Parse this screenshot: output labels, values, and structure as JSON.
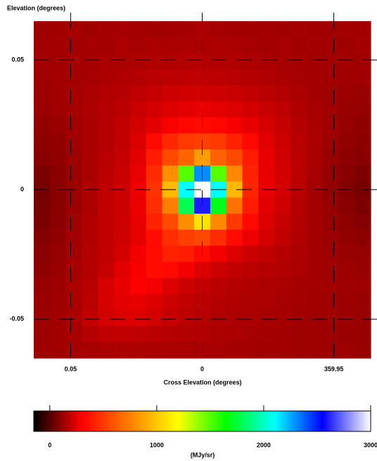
{
  "chart_data": {
    "type": "heatmap",
    "x_label": "Cross Elevation (degrees)",
    "y_label": "Elevation (degrees)",
    "xlim": [
      0.064,
      -0.064
    ],
    "ylim": [
      -0.065,
      0.065
    ],
    "xticks": [
      0.05,
      0,
      {
        "value": -0.05,
        "label": "359.95"
      }
    ],
    "yticks": [
      0.05,
      0,
      -0.05
    ],
    "grid": true,
    "z": [
      [
        130,
        135,
        140,
        130,
        140,
        145,
        140,
        135,
        140,
        145,
        150,
        145,
        140,
        135,
        140,
        130,
        140,
        135,
        130,
        140,
        135
      ],
      [
        135,
        140,
        135,
        145,
        140,
        150,
        145,
        150,
        150,
        155,
        150,
        155,
        150,
        145,
        140,
        145,
        135,
        140,
        135,
        130,
        140
      ],
      [
        140,
        135,
        145,
        140,
        150,
        150,
        155,
        160,
        160,
        165,
        165,
        160,
        160,
        155,
        150,
        145,
        140,
        135,
        140,
        135,
        130
      ],
      [
        130,
        140,
        140,
        145,
        150,
        160,
        165,
        175,
        180,
        185,
        185,
        180,
        175,
        170,
        160,
        150,
        145,
        140,
        135,
        130,
        135
      ],
      [
        125,
        135,
        145,
        150,
        160,
        170,
        185,
        200,
        210,
        215,
        215,
        210,
        205,
        195,
        180,
        165,
        150,
        140,
        130,
        125,
        120
      ],
      [
        120,
        130,
        140,
        155,
        165,
        180,
        205,
        225,
        240,
        255,
        260,
        255,
        240,
        225,
        205,
        185,
        160,
        145,
        130,
        120,
        115
      ],
      [
        110,
        120,
        135,
        150,
        170,
        190,
        220,
        250,
        290,
        320,
        330,
        320,
        290,
        260,
        230,
        200,
        170,
        150,
        130,
        115,
        105
      ],
      [
        100,
        110,
        130,
        150,
        170,
        195,
        235,
        330,
        440,
        500,
        520,
        500,
        420,
        330,
        250,
        210,
        175,
        150,
        125,
        110,
        100
      ],
      [
        90,
        105,
        125,
        150,
        175,
        200,
        250,
        400,
        560,
        650,
        850,
        640,
        560,
        400,
        260,
        215,
        180,
        150,
        120,
        100,
        90
      ],
      [
        70,
        95,
        125,
        150,
        180,
        205,
        260,
        450,
        800,
        1500,
        2300,
        1500,
        780,
        420,
        260,
        220,
        180,
        145,
        115,
        90,
        70
      ],
      [
        55,
        90,
        125,
        155,
        185,
        210,
        270,
        480,
        950,
        2100,
        3000,
        2100,
        950,
        430,
        260,
        220,
        175,
        140,
        110,
        85,
        60
      ],
      [
        60,
        90,
        125,
        155,
        190,
        210,
        265,
        460,
        750,
        1800,
        2600,
        1700,
        700,
        400,
        250,
        210,
        170,
        140,
        115,
        90,
        70
      ],
      [
        70,
        95,
        130,
        160,
        190,
        210,
        260,
        420,
        560,
        800,
        1100,
        780,
        500,
        330,
        240,
        200,
        165,
        140,
        120,
        100,
        85
      ],
      [
        85,
        105,
        135,
        160,
        190,
        215,
        260,
        350,
        460,
        520,
        550,
        450,
        340,
        270,
        220,
        190,
        160,
        140,
        125,
        110,
        100
      ],
      [
        95,
        115,
        140,
        165,
        195,
        225,
        280,
        340,
        420,
        400,
        330,
        280,
        240,
        210,
        190,
        170,
        155,
        140,
        130,
        120,
        115
      ],
      [
        105,
        120,
        145,
        170,
        200,
        250,
        290,
        350,
        330,
        280,
        240,
        210,
        190,
        180,
        170,
        160,
        150,
        140,
        130,
        125,
        120
      ],
      [
        115,
        125,
        150,
        175,
        230,
        260,
        300,
        280,
        240,
        210,
        195,
        180,
        170,
        160,
        155,
        150,
        145,
        140,
        135,
        130,
        125
      ],
      [
        120,
        130,
        150,
        180,
        230,
        250,
        260,
        240,
        210,
        190,
        180,
        170,
        160,
        155,
        150,
        145,
        140,
        135,
        130,
        125,
        120
      ],
      [
        125,
        135,
        150,
        190,
        220,
        240,
        240,
        220,
        200,
        180,
        170,
        160,
        155,
        150,
        145,
        140,
        135,
        130,
        130,
        125,
        120
      ],
      [
        125,
        135,
        145,
        170,
        185,
        190,
        185,
        180,
        170,
        165,
        160,
        155,
        150,
        145,
        140,
        135,
        130,
        130,
        125,
        120,
        120
      ],
      [
        130,
        135,
        140,
        145,
        150,
        155,
        155,
        150,
        150,
        150,
        145,
        145,
        140,
        140,
        135,
        135,
        130,
        130,
        125,
        125,
        120
      ]
    ],
    "colormap": [
      "#000000",
      "#ff0000",
      "#ff8000",
      "#ffff00",
      "#00ff00",
      "#00ffff",
      "#0000ff",
      "#ffffff"
    ],
    "colorbar": {
      "label": "(MJy/sr)",
      "lim": [
        -150,
        3000
      ],
      "ticks": [
        0,
        1000,
        2000,
        3000
      ]
    }
  }
}
